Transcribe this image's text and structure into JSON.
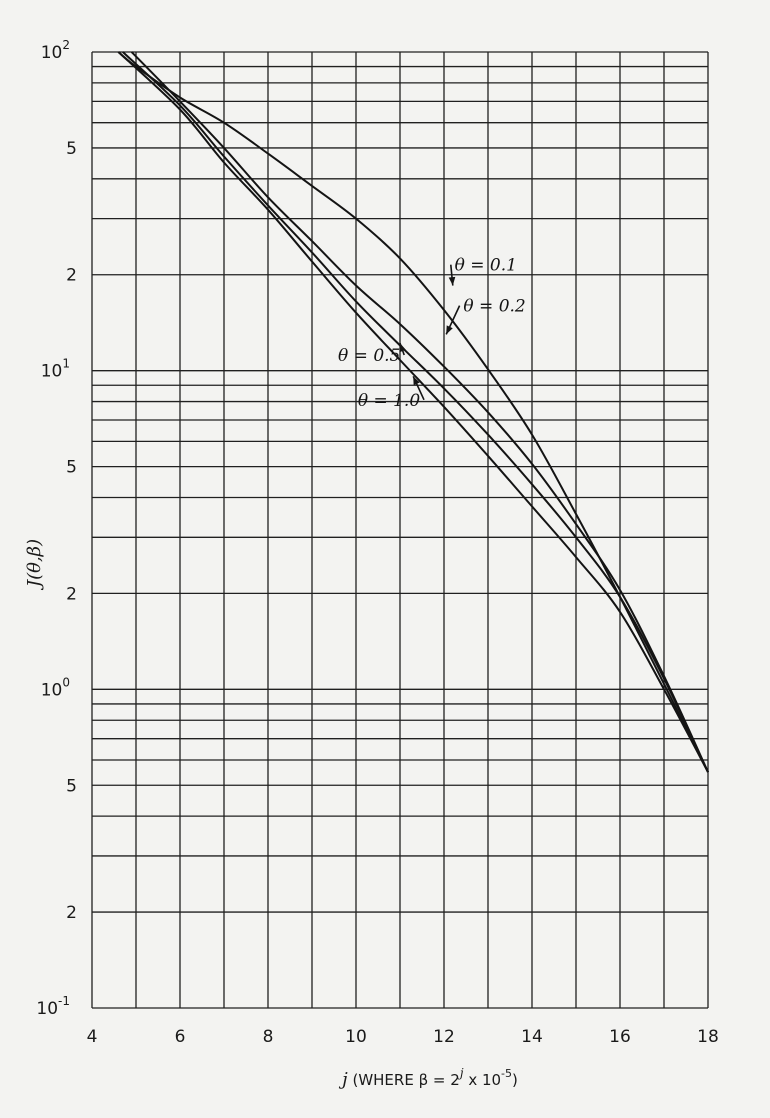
{
  "chart_data": {
    "type": "line",
    "xlabel": "j (WHERE β = 2^j x 10^-5)",
    "xlabel_parts": {
      "prefix": "j",
      "middle": " (WHERE β = 2",
      "sup1": "j",
      "middle2": " x 10",
      "sup2": "-5",
      "suffix": ")"
    },
    "ylabel": "J(θ,β)",
    "xlim": [
      4,
      18
    ],
    "ylim": [
      0.1,
      100
    ],
    "yscale": "log",
    "grid": true,
    "x_ticks": [
      "4",
      "6",
      "8",
      "10",
      "12",
      "14",
      "16",
      "18"
    ],
    "y_ticks": [
      {
        "base": "10",
        "exp": "2",
        "value": 100
      },
      {
        "label": "5",
        "value": 50
      },
      {
        "label": "2",
        "value": 20
      },
      {
        "base": "10",
        "exp": "1",
        "value": 10
      },
      {
        "label": "5",
        "value": 5
      },
      {
        "label": "2",
        "value": 2
      },
      {
        "base": "10",
        "exp": "0",
        "value": 1
      },
      {
        "label": "5",
        "value": 0.5
      },
      {
        "label": "2",
        "value": 0.2
      },
      {
        "base": "10",
        "exp": "-1",
        "value": 0.1
      }
    ],
    "series": [
      {
        "name": "θ = 0.1",
        "x": [
          4.6,
          5,
          6,
          7,
          8,
          9,
          10,
          11,
          12,
          13,
          14,
          15,
          16,
          17,
          18
        ],
        "y": [
          100,
          90,
          72,
          60,
          48,
          38,
          30,
          22.5,
          15.5,
          10.1,
          6.3,
          3.55,
          1.95,
          1.04,
          0.55
        ]
      },
      {
        "name": "θ = 0.2",
        "x": [
          4.9,
          6,
          7,
          8,
          9,
          10,
          11,
          12,
          13,
          14,
          15,
          16,
          17,
          18
        ],
        "y": [
          100,
          70,
          50,
          35,
          25.5,
          18.5,
          14,
          10.3,
          7.4,
          5.1,
          3.3,
          2.05,
          1.1,
          0.55
        ]
      },
      {
        "name": "θ = 0.5",
        "x": [
          4.7,
          6,
          7,
          8,
          9,
          10,
          11,
          12,
          13,
          14,
          15,
          16,
          17,
          18
        ],
        "y": [
          100,
          68,
          47,
          33,
          23.5,
          16.5,
          12,
          8.8,
          6.3,
          4.4,
          3,
          1.95,
          1.08,
          0.55
        ]
      },
      {
        "name": "θ = 1.0",
        "x": [
          4.6,
          6,
          7,
          8,
          9,
          10,
          11,
          12,
          13,
          14,
          15,
          16,
          17,
          18
        ],
        "y": [
          100,
          66,
          45,
          32,
          22,
          15.2,
          10.8,
          7.7,
          5.4,
          3.75,
          2.6,
          1.75,
          1,
          0.55
        ]
      }
    ],
    "annotations": [
      {
        "text": "θ = 0.1",
        "value_x": 12.95,
        "value_y": 21.5,
        "arrow_to_x": 12.2,
        "arrow_to_y": 18.5
      },
      {
        "text": "θ = 0.2",
        "value_x": 13.15,
        "value_y": 16,
        "arrow_to_x": 12.05,
        "arrow_to_y": 13
      },
      {
        "text": "θ = 0.5",
        "value_x": 10.3,
        "value_y": 11.2,
        "arrow_to_x": 11.0,
        "arrow_to_y": 12.2
      },
      {
        "text": "θ = 1.0",
        "value_x": 10.75,
        "value_y": 8.1,
        "arrow_to_x": 11.3,
        "arrow_to_y": 9.6
      }
    ]
  }
}
